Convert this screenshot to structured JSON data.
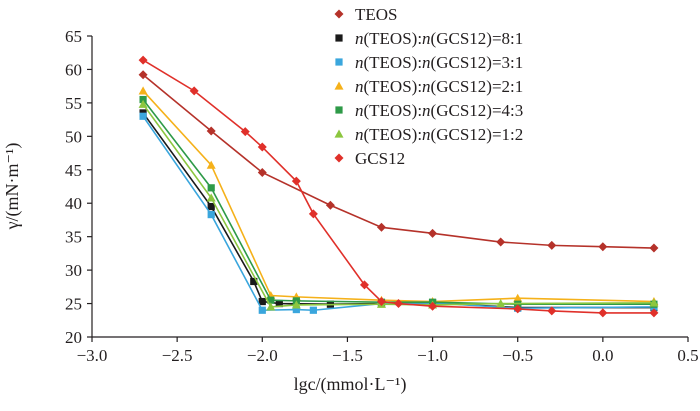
{
  "chart_data": {
    "type": "line",
    "xlabel": "lgc/(mmol·L⁻¹)",
    "ylabel": "γ/(mN·m⁻¹)",
    "xlim": [
      -3.0,
      0.5
    ],
    "ylim": [
      20,
      65
    ],
    "xticks": [
      "−3.0",
      "−2.5",
      "−2.0",
      "−1.5",
      "−1.0",
      "−0.5",
      "0.0",
      "0.5"
    ],
    "yticks": [
      "20",
      "25",
      "30",
      "35",
      "40",
      "45",
      "50",
      "55",
      "60",
      "65"
    ],
    "legend_position": "top-right",
    "grid": false,
    "series": [
      {
        "name": "TEOS",
        "color": "#b5322a",
        "marker": "diamond",
        "x": [
          -2.7,
          -2.3,
          -2.0,
          -1.6,
          -1.3,
          -1.0,
          -0.6,
          -0.3,
          0.0,
          0.3
        ],
        "y": [
          59.2,
          50.8,
          44.6,
          39.7,
          36.4,
          35.5,
          34.2,
          33.7,
          33.5,
          33.3
        ]
      },
      {
        "name_prefix": "n",
        "name_a": "(TEOS):",
        "name_b": "n",
        "name_c": "(GCS12)=8:1",
        "color": "#1a1a1a",
        "marker": "square",
        "x": [
          -2.7,
          -2.3,
          -2.05,
          -2.0,
          -1.9,
          -1.6,
          -1.3,
          -1.0,
          -0.5,
          0.3
        ],
        "y": [
          53.5,
          39.5,
          28.3,
          25.3,
          25.0,
          24.9,
          25.0,
          25.1,
          24.4,
          24.4
        ]
      },
      {
        "name_prefix": "n",
        "name_a": "(TEOS):",
        "name_b": "n",
        "name_c": "(GCS12)=3:1",
        "color": "#3aa6dd",
        "marker": "square",
        "x": [
          -2.7,
          -2.3,
          -2.0,
          -1.8,
          -1.7,
          -1.3,
          -1.0,
          -0.5,
          0.3
        ],
        "y": [
          53.0,
          38.3,
          24.0,
          24.1,
          24.0,
          25.0,
          25.1,
          24.3,
          24.5
        ]
      },
      {
        "name_prefix": "n",
        "name_a": "(TEOS):",
        "name_b": "n",
        "name_c": "(GCS12)=2:1",
        "color": "#f5b11a",
        "marker": "triangle",
        "x": [
          -2.7,
          -2.3,
          -1.95,
          -1.8,
          -1.3,
          -1.0,
          -0.5,
          0.3
        ],
        "y": [
          56.8,
          45.7,
          26.2,
          26.0,
          25.5,
          25.3,
          25.8,
          25.3
        ]
      },
      {
        "name_prefix": "n",
        "name_a": "(TEOS):",
        "name_b": "n",
        "name_c": "(GCS12)=4:3",
        "color": "#2e9a48",
        "marker": "square",
        "x": [
          -2.7,
          -2.3,
          -1.95,
          -1.8,
          -1.3,
          -1.0,
          -0.5,
          0.3
        ],
        "y": [
          55.5,
          42.3,
          25.5,
          25.4,
          25.2,
          25.2,
          24.9,
          24.9
        ]
      },
      {
        "name_prefix": "n",
        "name_a": "(TEOS):",
        "name_b": "n",
        "name_c": "(GCS12)=1:2",
        "color": "#8cc63f",
        "marker": "triangle",
        "x": [
          -2.7,
          -2.3,
          -1.95,
          -1.8,
          -1.3,
          -1.0,
          -0.6,
          0.3
        ],
        "y": [
          54.8,
          40.8,
          24.5,
          24.8,
          24.9,
          24.8,
          25.0,
          25.1
        ]
      },
      {
        "name": "GCS12",
        "color": "#e0302a",
        "marker": "diamond",
        "x": [
          -2.7,
          -2.4,
          -2.1,
          -2.0,
          -1.8,
          -1.7,
          -1.4,
          -1.3,
          -1.2,
          -1.0,
          -0.5,
          -0.3,
          0.0,
          0.3
        ],
        "y": [
          61.4,
          56.8,
          50.7,
          48.4,
          43.3,
          38.4,
          27.8,
          25.3,
          25.0,
          24.6,
          24.2,
          23.9,
          23.6,
          23.6
        ]
      }
    ]
  }
}
